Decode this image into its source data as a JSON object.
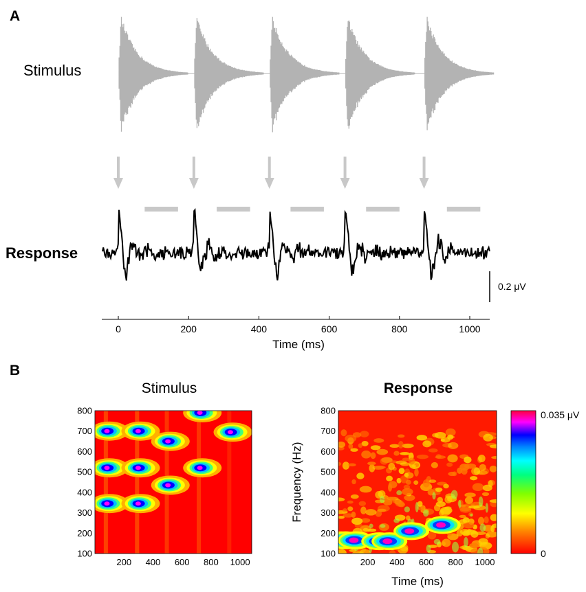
{
  "panel_a": {
    "letter": "A",
    "stimulus_label": "Stimulus",
    "response_label": "Response",
    "scale_bar_label": "0.2 μV",
    "x_axis_title": "Time (ms)",
    "x_ticks": [
      "0",
      "200",
      "400",
      "600",
      "800",
      "1000"
    ]
  },
  "panel_b": {
    "letter": "B",
    "left_title": "Stimulus",
    "right_title": "Response",
    "y_axis_title": "Frequency (Hz)",
    "x_axis_title": "Time (ms)",
    "y_ticks": [
      "100",
      "200",
      "300",
      "400",
      "500",
      "600",
      "700",
      "800"
    ],
    "x_ticks": [
      "200",
      "400",
      "600",
      "800",
      "1000"
    ],
    "colorbar_max_label": "0.035 μV",
    "colorbar_min_label": "0"
  },
  "chart_data": [
    {
      "type": "line",
      "title": "Stimulus",
      "description_units": "time (ms)",
      "x_range": [
        -45,
        1090
      ],
      "tone_onsets_ms": [
        0,
        215,
        430,
        645,
        870
      ],
      "tone_duration_ms": 200,
      "colors": {
        "waveform": "#b3b3b3"
      }
    },
    {
      "type": "line",
      "title": "Response",
      "x_label": "Time (ms)",
      "x_range": [
        -45,
        1090
      ],
      "x_ticks": [
        0,
        200,
        400,
        600,
        800,
        1000
      ],
      "scale_bar_uV": 0.2,
      "arrow_times_ms": [
        0,
        215,
        430,
        645,
        870
      ],
      "gray_bar_intervals_ms": [
        [
          75,
          170
        ],
        [
          280,
          375
        ],
        [
          490,
          585
        ],
        [
          705,
          800
        ],
        [
          935,
          1030
        ]
      ],
      "colors": {
        "trace": "#000000",
        "markers": "#c8c8c8"
      }
    },
    {
      "type": "heatmap",
      "title": "Stimulus",
      "x_range": [
        0,
        1080
      ],
      "y_range": [
        100,
        800
      ],
      "x_ticks": [
        200,
        400,
        600,
        800,
        1000
      ],
      "y_ticks": [
        100,
        200,
        300,
        400,
        500,
        600,
        700,
        800
      ],
      "hotspots": [
        {
          "t": 80,
          "f": 345
        },
        {
          "t": 80,
          "f": 520
        },
        {
          "t": 80,
          "f": 700
        },
        {
          "t": 295,
          "f": 345
        },
        {
          "t": 295,
          "f": 520
        },
        {
          "t": 295,
          "f": 700
        },
        {
          "t": 500,
          "f": 435
        },
        {
          "t": 500,
          "f": 650
        },
        {
          "t": 720,
          "f": 520
        },
        {
          "t": 720,
          "f": 790
        },
        {
          "t": 930,
          "f": 695
        }
      ]
    },
    {
      "type": "heatmap",
      "title": "Response",
      "x_label": "Time (ms)",
      "y_label": "Frequency (Hz)",
      "x_range": [
        0,
        1080
      ],
      "y_range": [
        100,
        800
      ],
      "x_ticks": [
        200,
        400,
        600,
        800,
        1000
      ],
      "y_ticks": [
        100,
        200,
        300,
        400,
        500,
        600,
        700,
        800
      ],
      "colorbar_range_uV": [
        0,
        0.035
      ],
      "hotspots": [
        {
          "t": 30,
          "f": 165
        },
        {
          "t": 100,
          "f": 165
        },
        {
          "t": 260,
          "f": 160
        },
        {
          "t": 330,
          "f": 160
        },
        {
          "t": 480,
          "f": 210
        },
        {
          "t": 695,
          "f": 240
        }
      ]
    }
  ]
}
